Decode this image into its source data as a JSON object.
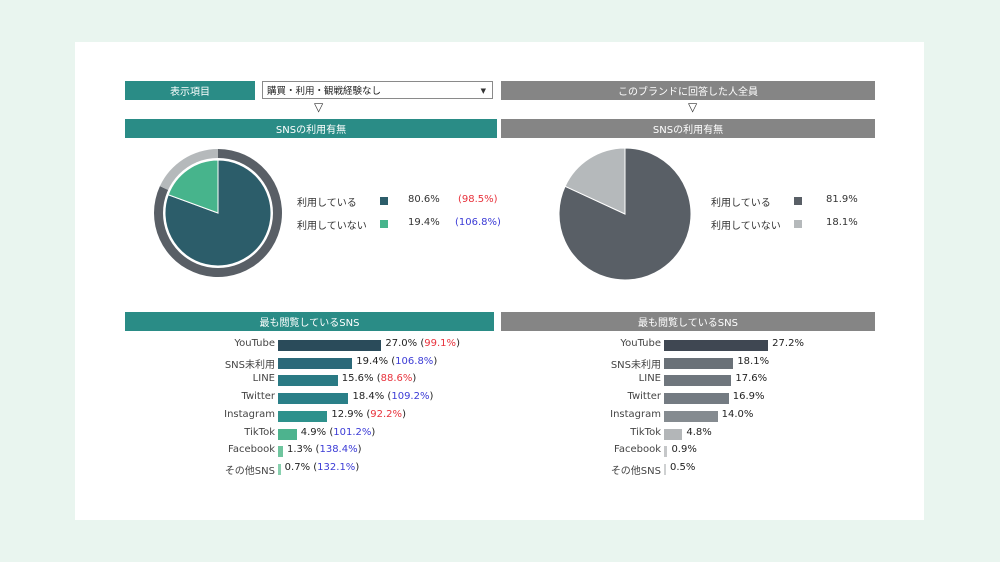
{
  "filter": {
    "label": "表示項目",
    "select_value": "購買・利用・観戦経験なし",
    "compare_label": "このブランドに回答した人全員"
  },
  "left": {
    "pie_title": "SNSの利用有無",
    "bar_title": "最も閲覧しているSNS",
    "pie": [
      {
        "label": "利用している",
        "value": "80.6%",
        "index": "(98.5%)",
        "index_color": "red",
        "color": "#2c5d6a",
        "pct": 80.6
      },
      {
        "label": "利用していない",
        "value": "19.4%",
        "index": "(106.8%)",
        "index_color": "blue",
        "color": "#47b48c",
        "pct": 19.4
      }
    ],
    "outer_ring": [
      {
        "pct": 81.9,
        "color": "#595f66"
      },
      {
        "pct": 18.1,
        "color": "#b5b9bb"
      }
    ],
    "bars": [
      {
        "label": "YouTube",
        "value": "27.0%",
        "index": "99.1%",
        "index_color": "red",
        "pct": 27.0,
        "color": "#2a4b5a"
      },
      {
        "label": "SNS未利用",
        "value": "19.4%",
        "index": "106.8%",
        "index_color": "blue",
        "pct": 19.4,
        "color": "#2b6979"
      },
      {
        "label": "LINE",
        "value": "15.6%",
        "index": "88.6%",
        "index_color": "red",
        "pct": 15.6,
        "color": "#2a7a84"
      },
      {
        "label": "Twitter",
        "value": "18.4%",
        "index": "109.2%",
        "index_color": "blue",
        "pct": 18.4,
        "color": "#2a7f88"
      },
      {
        "label": "Instagram",
        "value": "12.9%",
        "index": "92.2%",
        "index_color": "red",
        "pct": 12.9,
        "color": "#2e918c"
      },
      {
        "label": "TikTok",
        "value": "4.9%",
        "index": "101.2%",
        "index_color": "blue",
        "pct": 4.9,
        "color": "#4db38e"
      },
      {
        "label": "Facebook",
        "value": "1.3%",
        "index": "138.4%",
        "index_color": "blue",
        "pct": 1.3,
        "color": "#6fc59e"
      },
      {
        "label": "その他SNS",
        "value": "0.7%",
        "index": "132.1%",
        "index_color": "blue",
        "pct": 0.7,
        "color": "#88d0ae"
      }
    ]
  },
  "right": {
    "pie_title": "SNSの利用有無",
    "bar_title": "最も閲覧しているSNS",
    "pie": [
      {
        "label": "利用している",
        "value": "81.9%",
        "color": "#595f66",
        "pct": 81.9
      },
      {
        "label": "利用していない",
        "value": "18.1%",
        "color": "#b5b9bb",
        "pct": 18.1
      }
    ],
    "bars": [
      {
        "label": "YouTube",
        "value": "27.2%",
        "pct": 27.2,
        "color": "#3f4752"
      },
      {
        "label": "SNS未利用",
        "value": "18.1%",
        "pct": 18.1,
        "color": "#6a7178"
      },
      {
        "label": "LINE",
        "value": "17.6%",
        "pct": 17.6,
        "color": "#6f767d"
      },
      {
        "label": "Twitter",
        "value": "16.9%",
        "pct": 16.9,
        "color": "#747b82"
      },
      {
        "label": "Instagram",
        "value": "14.0%",
        "pct": 14.0,
        "color": "#858b90"
      },
      {
        "label": "TikTok",
        "value": "4.8%",
        "pct": 4.8,
        "color": "#b3b6b8"
      },
      {
        "label": "Facebook",
        "value": "0.9%",
        "pct": 0.9,
        "color": "#c5c7c9"
      },
      {
        "label": "その他SNS",
        "value": "0.5%",
        "pct": 0.5,
        "color": "#cfd1d2"
      }
    ]
  },
  "chart_data": [
    {
      "type": "pie",
      "title": "SNSの利用有無",
      "categories": [
        "利用している",
        "利用していない"
      ],
      "values": [
        80.6,
        19.4
      ],
      "index": [
        98.5,
        106.8
      ]
    },
    {
      "type": "pie",
      "title": "SNSの利用有無",
      "categories": [
        "利用している",
        "利用していない"
      ],
      "values": [
        81.9,
        18.1
      ]
    },
    {
      "type": "bar",
      "title": "最も閲覧しているSNS",
      "categories": [
        "YouTube",
        "SNS未利用",
        "LINE",
        "Twitter",
        "Instagram",
        "TikTok",
        "Facebook",
        "その他SNS"
      ],
      "values": [
        27.0,
        19.4,
        15.6,
        18.4,
        12.9,
        4.9,
        1.3,
        0.7
      ],
      "index": [
        99.1,
        106.8,
        88.6,
        109.2,
        92.2,
        101.2,
        138.4,
        132.1
      ]
    },
    {
      "type": "bar",
      "title": "最も閲覧しているSNS",
      "categories": [
        "YouTube",
        "SNS未利用",
        "LINE",
        "Twitter",
        "Instagram",
        "TikTok",
        "Facebook",
        "その他SNS"
      ],
      "values": [
        27.2,
        18.1,
        17.6,
        16.9,
        14.0,
        4.8,
        0.9,
        0.5
      ]
    }
  ]
}
